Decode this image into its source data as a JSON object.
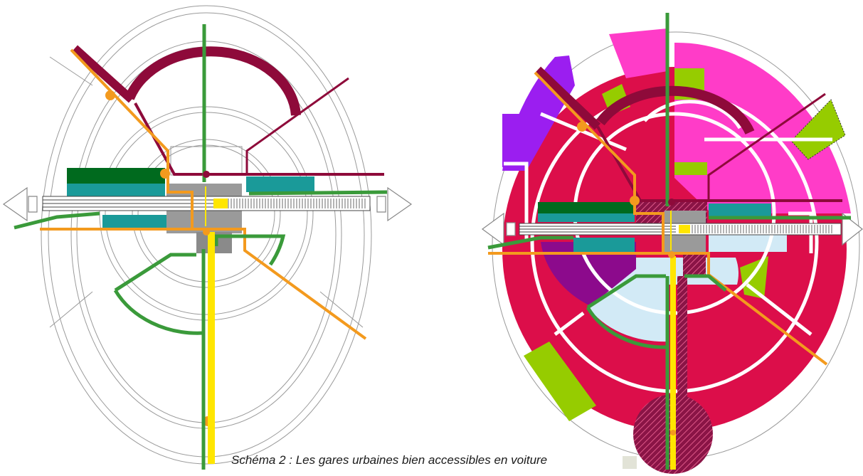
{
  "caption": {
    "text": "Schéma 2 : Les gares urbaines bien accessibles en voiture"
  },
  "colors": {
    "background": "#ffffff",
    "ring_lines": "#9a9a9a",
    "green_line": "#3a9a3a",
    "orange_line": "#f39a1e",
    "maroon_line": "#8e0a3a",
    "yellow_line": "#ffe600",
    "dark_green_block": "#006a1e",
    "teal_block": "#1a9a99",
    "gray_station": "#8a8a8a",
    "zone_crimson": "#dc0e4a",
    "zone_magenta": "#ff3cc8",
    "zone_violet": "#9b1ef0",
    "zone_purple": "#8c0a8c",
    "zone_lime": "#96cc00",
    "zone_light_blue": "#d2eaf6",
    "zone_hatched": "#8a1446"
  },
  "figures": [
    {
      "name": "current-situation-diagram",
      "zones": false
    },
    {
      "name": "urbanised-situation-diagram",
      "zones": true
    }
  ],
  "icons": {
    "left_arrow": "double-chevron-arrow-left",
    "right_arrow": "double-chevron-arrow-right",
    "rail_track": "railway-hatch",
    "station": "station-square"
  }
}
